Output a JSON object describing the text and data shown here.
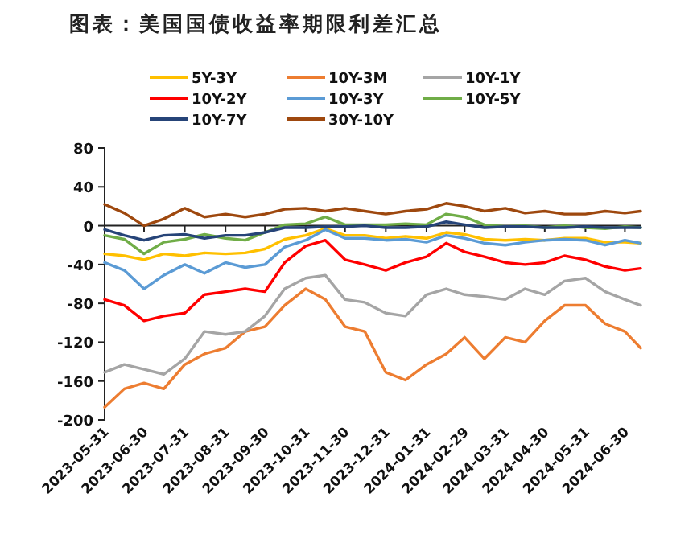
{
  "chart_data": {
    "type": "line",
    "title": "图表：美国国债收益率期限利差汇总",
    "x": [
      "2023-05-31",
      "2023-06-15",
      "2023-06-30",
      "2023-07-15",
      "2023-07-31",
      "2023-08-15",
      "2023-08-31",
      "2023-09-15",
      "2023-09-30",
      "2023-10-15",
      "2023-10-31",
      "2023-11-15",
      "2023-11-30",
      "2023-12-15",
      "2023-12-31",
      "2024-01-15",
      "2024-01-31",
      "2024-02-15",
      "2024-02-29",
      "2024-03-15",
      "2024-03-31",
      "2024-04-15",
      "2024-04-30",
      "2024-05-15",
      "2024-05-31",
      "2024-06-15",
      "2024-06-30",
      "2024-07-12"
    ],
    "series": [
      {
        "name": "5Y-3Y",
        "color": "#ffc000",
        "values": [
          -29,
          -31,
          -35,
          -29,
          -31,
          -28,
          -29,
          -28,
          -24,
          -14,
          -10,
          -3,
          -10,
          -10,
          -13,
          -11,
          -13,
          -7,
          -9,
          -14,
          -15,
          -14,
          -15,
          -13,
          -13,
          -17,
          -17,
          -18
        ]
      },
      {
        "name": "10Y-3M",
        "color": "#ed7d31",
        "values": [
          -187,
          -168,
          -162,
          -168,
          -143,
          -132,
          -126,
          -109,
          -104,
          -82,
          -65,
          -76,
          -104,
          -109,
          -151,
          -159,
          -143,
          -132,
          -115,
          -137,
          -115,
          -120,
          -98,
          -82,
          -82,
          -101,
          -109,
          -126
        ]
      },
      {
        "name": "10Y-1Y",
        "color": "#a5a5a5",
        "values": [
          -151,
          -143,
          -148,
          -153,
          -137,
          -109,
          -112,
          -109,
          -93,
          -65,
          -54,
          -51,
          -76,
          -79,
          -90,
          -93,
          -71,
          -65,
          -71,
          -73,
          -76,
          -65,
          -71,
          -57,
          -54,
          -68,
          -76,
          -82
        ]
      },
      {
        "name": "10Y-2Y",
        "color": "#ff0000",
        "values": [
          -76,
          -82,
          -98,
          -93,
          -90,
          -71,
          -68,
          -65,
          -68,
          -38,
          -21,
          -15,
          -35,
          -40,
          -46,
          -38,
          -32,
          -18,
          -27,
          -32,
          -38,
          -40,
          -38,
          -31,
          -35,
          -42,
          -46,
          -44
        ]
      },
      {
        "name": "10Y-3Y",
        "color": "#5b9bd5",
        "values": [
          -38,
          -46,
          -65,
          -51,
          -40,
          -49,
          -38,
          -43,
          -40,
          -22,
          -15,
          -4,
          -13,
          -13,
          -15,
          -14,
          -17,
          -10,
          -13,
          -18,
          -20,
          -17,
          -15,
          -14,
          -15,
          -20,
          -15,
          -18
        ]
      },
      {
        "name": "10Y-5Y",
        "color": "#70ad47",
        "values": [
          -10,
          -14,
          -29,
          -17,
          -14,
          -9,
          -13,
          -15,
          -7,
          1,
          2,
          9,
          1,
          1,
          1,
          2,
          1,
          12,
          9,
          1,
          -1,
          0,
          -2,
          0,
          -2,
          -3,
          -1,
          -2
        ]
      },
      {
        "name": "10Y-7Y",
        "color": "#264478",
        "values": [
          -4,
          -10,
          -15,
          -10,
          -9,
          -13,
          -10,
          -10,
          -7,
          -2,
          -2,
          -1,
          -1,
          0,
          -2,
          -2,
          -1,
          4,
          1,
          -2,
          -1,
          -1,
          -2,
          -2,
          -1,
          -2,
          -2,
          -2
        ]
      },
      {
        "name": "30Y-10Y",
        "color": "#9e480e",
        "values": [
          22,
          13,
          0,
          7,
          18,
          9,
          12,
          9,
          12,
          17,
          18,
          15,
          18,
          15,
          12,
          15,
          17,
          23,
          20,
          15,
          18,
          13,
          15,
          12,
          12,
          15,
          13,
          15
        ]
      }
    ],
    "xlim": [
      "2023-05-31",
      "2024-07-12"
    ],
    "xticks": [
      "2023-05-31",
      "2023-06-30",
      "2023-07-31",
      "2023-08-31",
      "2023-09-30",
      "2023-10-31",
      "2023-11-30",
      "2023-12-31",
      "2024-01-31",
      "2024-02-29",
      "2024-03-31",
      "2024-04-30",
      "2024-05-31",
      "2024-06-30"
    ],
    "ylim": [
      -200,
      80
    ],
    "yticks": [
      -200,
      -160,
      -120,
      -80,
      -40,
      0,
      40,
      80
    ],
    "legend": "top",
    "line_style": "solid",
    "marker": "none"
  }
}
